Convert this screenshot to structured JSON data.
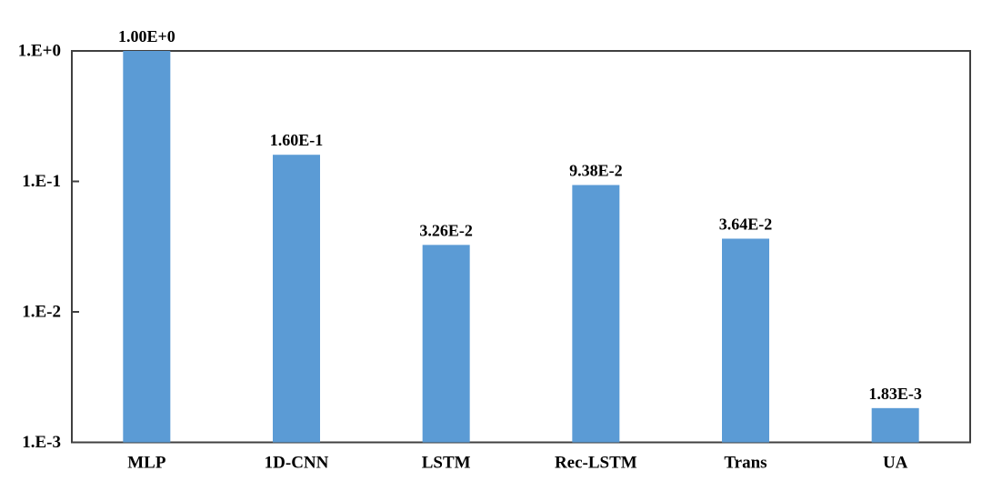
{
  "chart_data": {
    "type": "bar",
    "title": "",
    "xlabel": "",
    "ylabel": "",
    "categories": [
      "MLP",
      "1D-CNN",
      "LSTM",
      "Rec-LSTM",
      "Trans",
      "UA"
    ],
    "values": [
      1.0,
      0.16,
      0.0326,
      0.0938,
      0.0364,
      0.00183
    ],
    "value_labels": [
      "1.00E+0",
      "1.60E-1",
      "3.26E-2",
      "9.38E-2",
      "3.64E-2",
      "1.83E-3"
    ],
    "y_scale": "log",
    "ylim": [
      0.001,
      1
    ],
    "y_ticks": [
      {
        "label": "1.E+0",
        "value": 1
      },
      {
        "label": "1.E-1",
        "value": 0.1
      },
      {
        "label": "1.E-2",
        "value": 0.01
      },
      {
        "label": "1.E-3",
        "value": 0.001
      }
    ],
    "grid": "off",
    "legend": "none",
    "colors": {
      "bar_fill": "#5B9BD5",
      "axis_line": "#404040",
      "label_text": "#000000",
      "background": "#FFFFFF"
    }
  }
}
